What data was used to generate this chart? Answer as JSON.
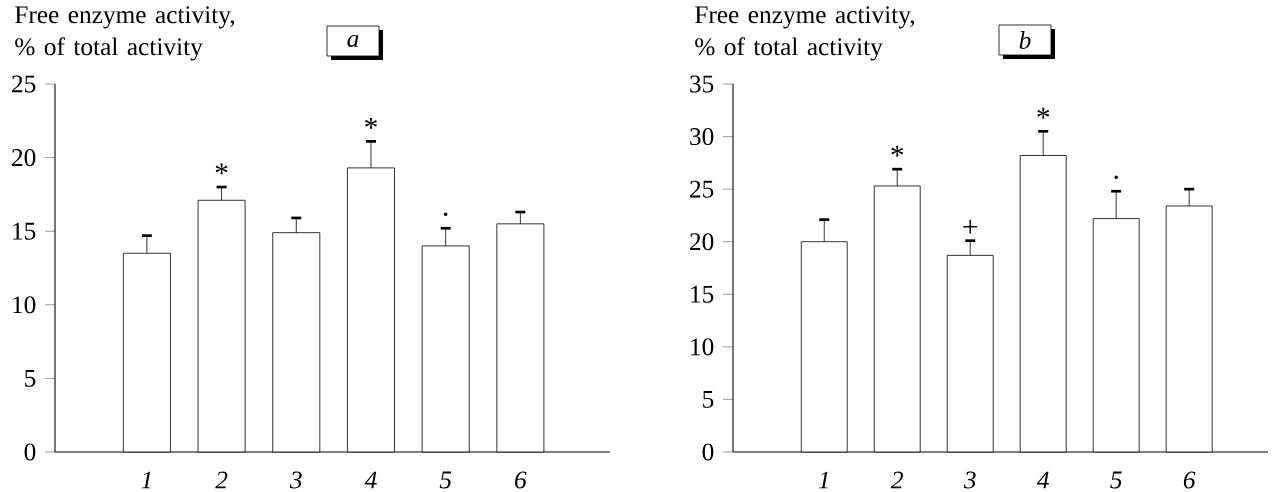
{
  "chart_data": [
    {
      "type": "bar",
      "title": "a",
      "ylabel": "Free enzyme activity, % of total activity",
      "categories": [
        "1",
        "2",
        "3",
        "4",
        "5",
        "6"
      ],
      "values": [
        13.5,
        17.1,
        14.9,
        19.3,
        14.0,
        15.5
      ],
      "errors": [
        1.2,
        0.9,
        1.0,
        1.8,
        1.2,
        0.8
      ],
      "color": "#ffffff",
      "ylim": [
        0,
        25
      ],
      "yticks": [
        0,
        5,
        10,
        15,
        20,
        25
      ],
      "annotations": [
        {
          "text": "*",
          "x": "2",
          "y": 17.1
        },
        {
          "text": "*",
          "x": "4",
          "y": 19.3
        },
        {
          "text": "·",
          "x": "5",
          "y": 14.0
        }
      ]
    },
    {
      "type": "bar",
      "title": "b",
      "ylabel": "Free enzyme activity, % of total activity",
      "categories": [
        "1",
        "2",
        "3",
        "4",
        "5",
        "6"
      ],
      "values": [
        20.0,
        25.3,
        18.7,
        28.2,
        22.2,
        23.4
      ],
      "errors": [
        2.1,
        1.6,
        1.4,
        2.3,
        2.6,
        1.6
      ],
      "color": "#ffffff",
      "ylim": [
        0,
        35
      ],
      "yticks": [
        0,
        5,
        10,
        15,
        20,
        25,
        30,
        35
      ],
      "annotations": [
        {
          "text": "*",
          "x": "2",
          "y": 25.3
        },
        {
          "text": "+",
          "x": "3",
          "y": 18.7
        },
        {
          "text": "*",
          "x": "4",
          "y": 28.2
        },
        {
          "text": "·",
          "x": "5",
          "y": 22.2
        }
      ]
    }
  ]
}
